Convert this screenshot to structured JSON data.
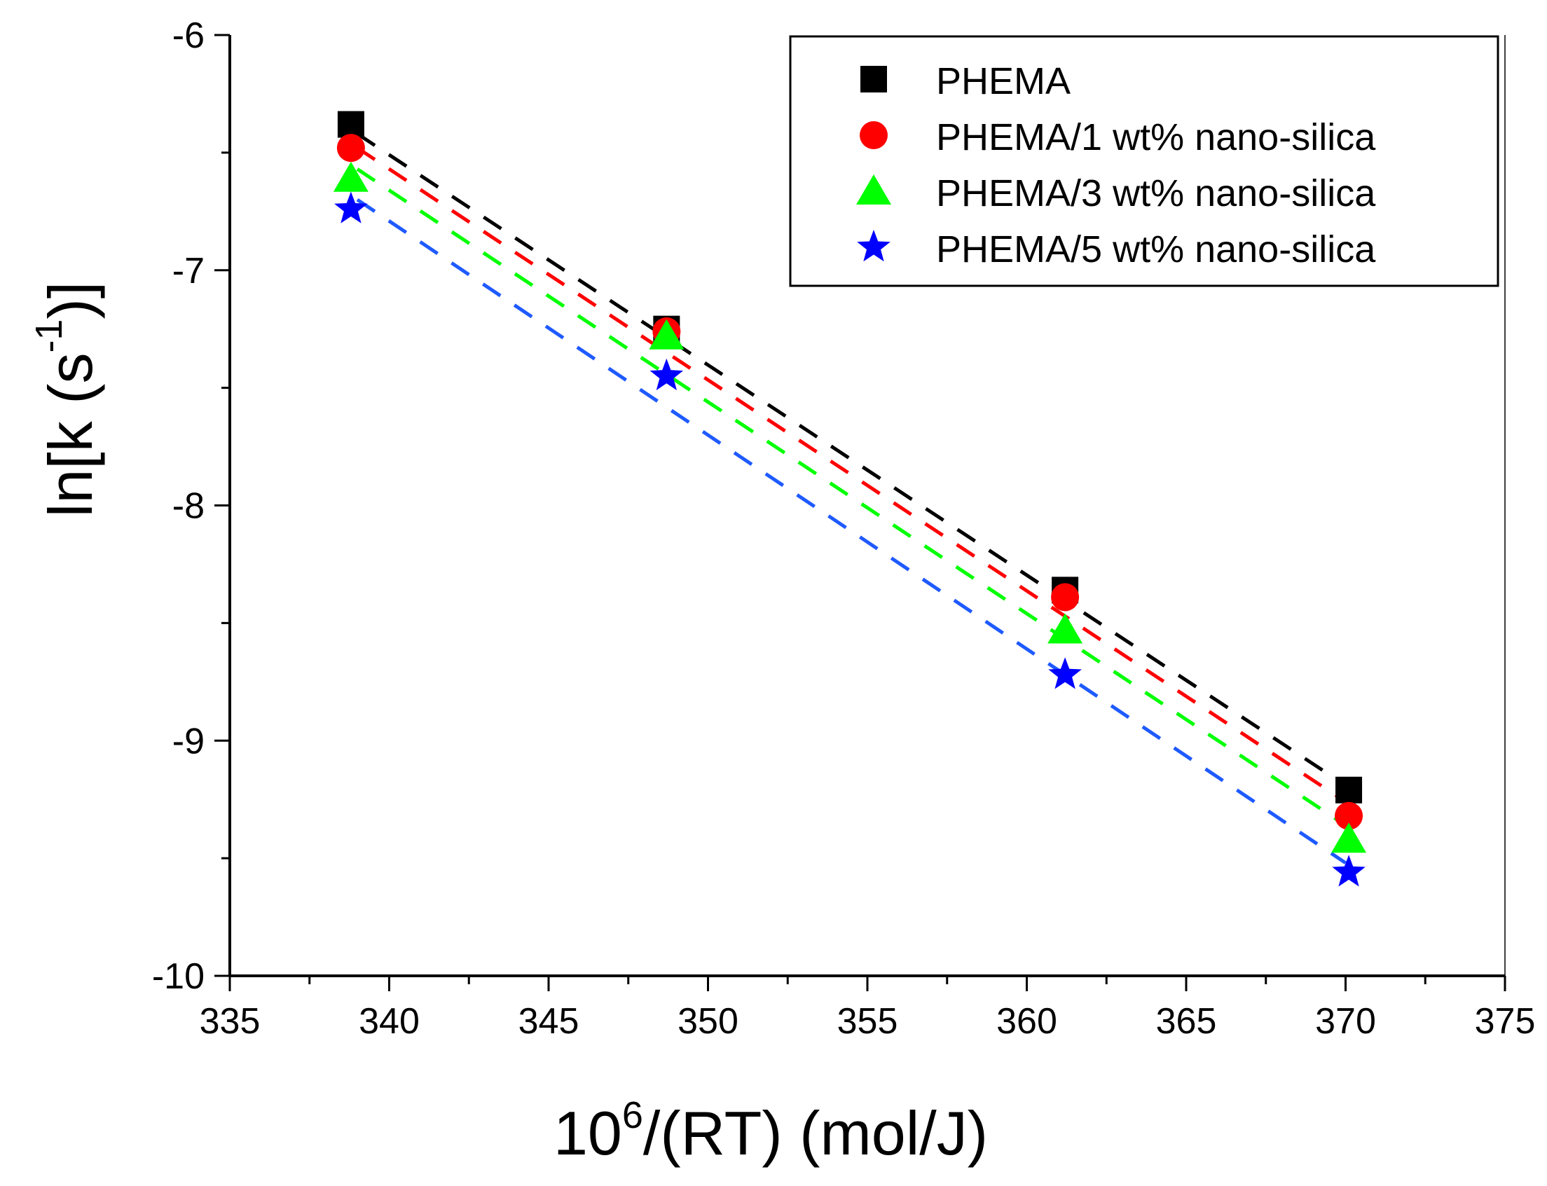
{
  "chart_data": {
    "type": "scatter",
    "title": "",
    "xlabel": {
      "base": "10",
      "sup": "6",
      "rest": "/(RT) (mol/J)"
    },
    "ylabel": {
      "pre": "ln[k (s",
      "sup": "-1",
      "post": ")]"
    },
    "xlim": [
      335,
      375
    ],
    "ylim": [
      -10,
      -6
    ],
    "xticks": [
      335,
      340,
      345,
      350,
      355,
      360,
      365,
      370,
      375
    ],
    "yticks": [
      -6,
      -7,
      -8,
      -9,
      -10
    ],
    "grid": false,
    "legend_position": "top-right",
    "series": [
      {
        "name": "PHEMA",
        "marker": "square",
        "color": "#000000",
        "line_color": "#000000",
        "x": [
          338.8,
          348.7,
          361.2,
          370.1
        ],
        "y": [
          -6.38,
          -7.25,
          -8.36,
          -9.21
        ],
        "fit": [
          [
            339.0,
            -6.42
          ],
          [
            370.0,
            -9.19
          ]
        ]
      },
      {
        "name": "PHEMA/1 wt% nano-silica",
        "marker": "circle",
        "color": "#ff0000",
        "line_color": "#ff0000",
        "x": [
          338.8,
          348.7,
          361.2,
          370.1
        ],
        "y": [
          -6.48,
          -7.26,
          -8.39,
          -9.32
        ],
        "fit": [
          [
            339.0,
            -6.48
          ],
          [
            370.0,
            -9.26
          ]
        ]
      },
      {
        "name": "PHEMA/3 wt% nano-silica",
        "marker": "triangle",
        "color": "#00ff00",
        "line_color": "#00ff00",
        "x": [
          338.8,
          348.7,
          361.2,
          370.1
        ],
        "y": [
          -6.61,
          -7.28,
          -8.53,
          -9.42
        ],
        "fit": [
          [
            339.0,
            -6.57
          ],
          [
            370.0,
            -9.36
          ]
        ]
      },
      {
        "name": "PHEMA/5 wt% nano-silica",
        "marker": "star",
        "color": "#0000ff",
        "line_color": "#1e5aff",
        "x": [
          338.8,
          348.7,
          361.2,
          370.1
        ],
        "y": [
          -6.74,
          -7.45,
          -8.72,
          -9.56
        ],
        "fit": [
          [
            339.0,
            -6.7
          ],
          [
            370.0,
            -9.52
          ]
        ]
      }
    ]
  }
}
